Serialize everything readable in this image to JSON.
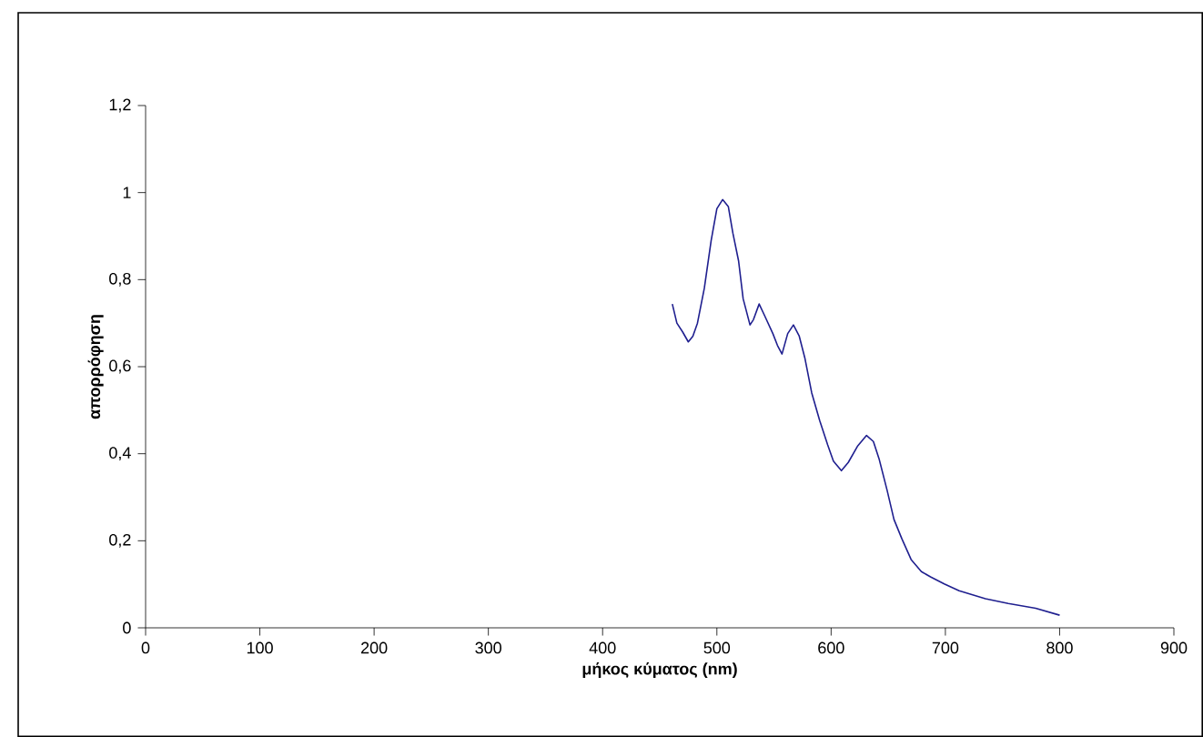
{
  "chart_data": {
    "type": "line",
    "xlabel": "μήκος κύματος (nm)",
    "ylabel": "απορρόφηση",
    "xlim": [
      0,
      900
    ],
    "ylim": [
      0,
      1.2
    ],
    "xticks": [
      0,
      100,
      200,
      300,
      400,
      500,
      600,
      700,
      800,
      900
    ],
    "yticks": [
      0,
      {
        "value": 0.2,
        "label": "0,2"
      },
      {
        "value": 0.4,
        "label": "0,4"
      },
      {
        "value": 0.6,
        "label": "0,6"
      },
      {
        "value": 0.8,
        "label": "0,8"
      },
      1,
      {
        "value": 1.2,
        "label": "1,2"
      }
    ],
    "grid": false,
    "marker": "none",
    "line_style": "solid",
    "series": [
      {
        "color": "#1f1f8f",
        "x": [
          461,
          465,
          470,
          475,
          479,
          483,
          489,
          495,
          500,
          505,
          510,
          514,
          519,
          523,
          529,
          532,
          537,
          542,
          549,
          553,
          557,
          562,
          567,
          572,
          577,
          583,
          590,
          597,
          602,
          609,
          615,
          623,
          631,
          637,
          642,
          649,
          655,
          662,
          670,
          679,
          687,
          699,
          712,
          735,
          755,
          779,
          800
        ],
        "values": [
          0.744,
          0.7,
          0.68,
          0.657,
          0.67,
          0.7,
          0.78,
          0.89,
          0.963,
          0.984,
          0.968,
          0.907,
          0.843,
          0.756,
          0.696,
          0.708,
          0.744,
          0.716,
          0.676,
          0.649,
          0.629,
          0.676,
          0.696,
          0.671,
          0.62,
          0.54,
          0.476,
          0.42,
          0.383,
          0.361,
          0.38,
          0.417,
          0.442,
          0.428,
          0.388,
          0.316,
          0.249,
          0.204,
          0.157,
          0.129,
          0.117,
          0.101,
          0.085,
          0.067,
          0.056,
          0.045,
          0.029
        ]
      }
    ]
  }
}
